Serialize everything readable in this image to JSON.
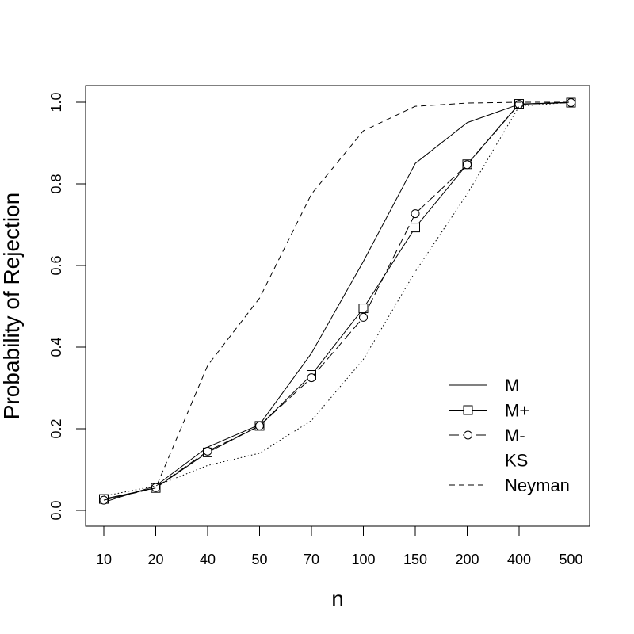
{
  "chart_data": {
    "type": "line",
    "title": "",
    "xlabel": "n",
    "ylabel": "Probability of Rejection",
    "categories": [
      "10",
      "20",
      "40",
      "50",
      "70",
      "100",
      "150",
      "200",
      "400",
      "500"
    ],
    "ylim": [
      0,
      1
    ],
    "yticks": [
      "0.0",
      "0.2",
      "0.4",
      "0.6",
      "0.8",
      "1.0"
    ],
    "grid": false,
    "legend_position": "bottom-right",
    "series": [
      {
        "name": "M",
        "line": "solid",
        "marker": "none",
        "values": [
          0.02,
          0.06,
          0.155,
          0.21,
          0.385,
          0.61,
          0.85,
          0.95,
          0.995,
          1.0
        ]
      },
      {
        "name": "M+",
        "line": "solid",
        "marker": "square",
        "values": [
          0.028,
          0.055,
          0.142,
          0.207,
          0.332,
          0.495,
          0.693,
          0.848,
          0.996,
          0.999
        ]
      },
      {
        "name": "M-",
        "line": "longdash",
        "marker": "circle",
        "values": [
          0.025,
          0.056,
          0.145,
          0.207,
          0.325,
          0.473,
          0.727,
          0.847,
          0.995,
          0.999
        ]
      },
      {
        "name": "KS",
        "line": "dotted",
        "marker": "none",
        "values": [
          0.035,
          0.06,
          0.11,
          0.14,
          0.22,
          0.37,
          0.585,
          0.775,
          0.99,
          1.0
        ]
      },
      {
        "name": "Neyman",
        "line": "dashed",
        "marker": "none",
        "values": [
          0.025,
          0.055,
          0.355,
          0.52,
          0.775,
          0.93,
          0.99,
          0.998,
          1.0,
          1.0
        ]
      }
    ]
  }
}
